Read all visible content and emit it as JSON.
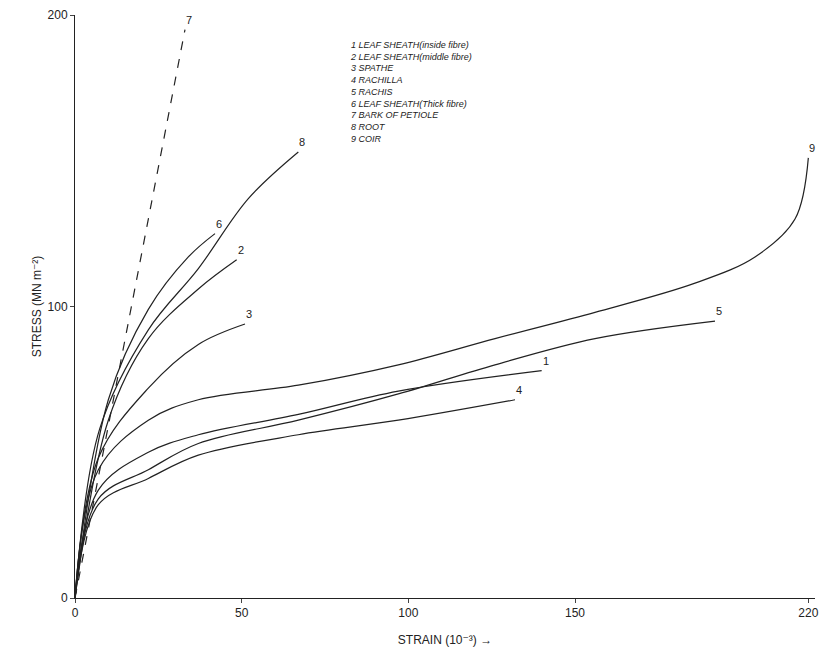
{
  "chart_data": {
    "type": "line",
    "x_label": "STRAIN (10⁻³) →",
    "y_label": "STRESS (MN m⁻²)",
    "xlim": [
      0,
      222
    ],
    "ylim": [
      0,
      200
    ],
    "xticks": [
      0,
      50,
      100,
      150,
      220
    ],
    "yticks": [
      0,
      100,
      200
    ],
    "grid": false,
    "color": "#222222",
    "series": [
      {
        "label": "1",
        "name": "LEAF SHEATH(inside fibre)",
        "color": "#222222",
        "line_style": "solid",
        "x": [
          0,
          7,
          22,
          37,
          67,
          97,
          140
        ],
        "values": [
          0,
          37,
          50,
          56,
          63,
          71,
          78
        ]
      },
      {
        "label": "2",
        "name": "LEAF SHEATH(middle fibre)",
        "color": "#222222",
        "line_style": "solid",
        "x": [
          0,
          10,
          22,
          37,
          48.5
        ],
        "values": [
          0,
          61,
          89,
          106,
          116
        ]
      },
      {
        "label": "3",
        "name": "SPATHE",
        "color": "#222222",
        "line_style": "solid",
        "x": [
          0,
          7,
          22,
          37,
          51
        ],
        "values": [
          0,
          48,
          72,
          87,
          94
        ]
      },
      {
        "label": "4",
        "name": "RACHILLA",
        "color": "#222222",
        "line_style": "solid",
        "x": [
          0,
          7,
          22,
          37,
          67,
          97,
          132
        ],
        "values": [
          0,
          32,
          41,
          49,
          56,
          61,
          68
        ]
      },
      {
        "label": "5",
        "name": "RACHIS",
        "color": "#222222",
        "line_style": "solid",
        "x": [
          0,
          7,
          22,
          37,
          67,
          97,
          126,
          156,
          192
        ],
        "values": [
          0,
          34,
          44,
          53,
          61,
          70,
          80,
          89,
          95
        ]
      },
      {
        "label": "6",
        "name": "LEAF SHEATH(Thick fibre)",
        "color": "#222222",
        "line_style": "solid",
        "x": [
          0,
          10,
          22,
          34,
          42
        ],
        "values": [
          0,
          68,
          99,
          117,
          125
        ]
      },
      {
        "label": "7",
        "name": "BARK OF PETIOLE",
        "color": "#222222",
        "line_style": "dashed",
        "x": [
          0,
          33
        ],
        "values": [
          0,
          195
        ]
      },
      {
        "label": "8",
        "name": "ROOT",
        "color": "#222222",
        "line_style": "solid",
        "x": [
          0,
          7.4,
          22,
          37,
          52,
          67
        ],
        "values": [
          0,
          58,
          92,
          113,
          137,
          153
        ]
      },
      {
        "label": "9",
        "name": "COIR",
        "color": "#222222",
        "line_style": "solid",
        "x": [
          0,
          7,
          22,
          37,
          67,
          97,
          126,
          156,
          186,
          204,
          216,
          220
        ],
        "values": [
          0,
          44,
          61,
          68,
          73,
          80,
          89,
          98,
          108,
          117,
          130,
          151
        ]
      }
    ]
  }
}
